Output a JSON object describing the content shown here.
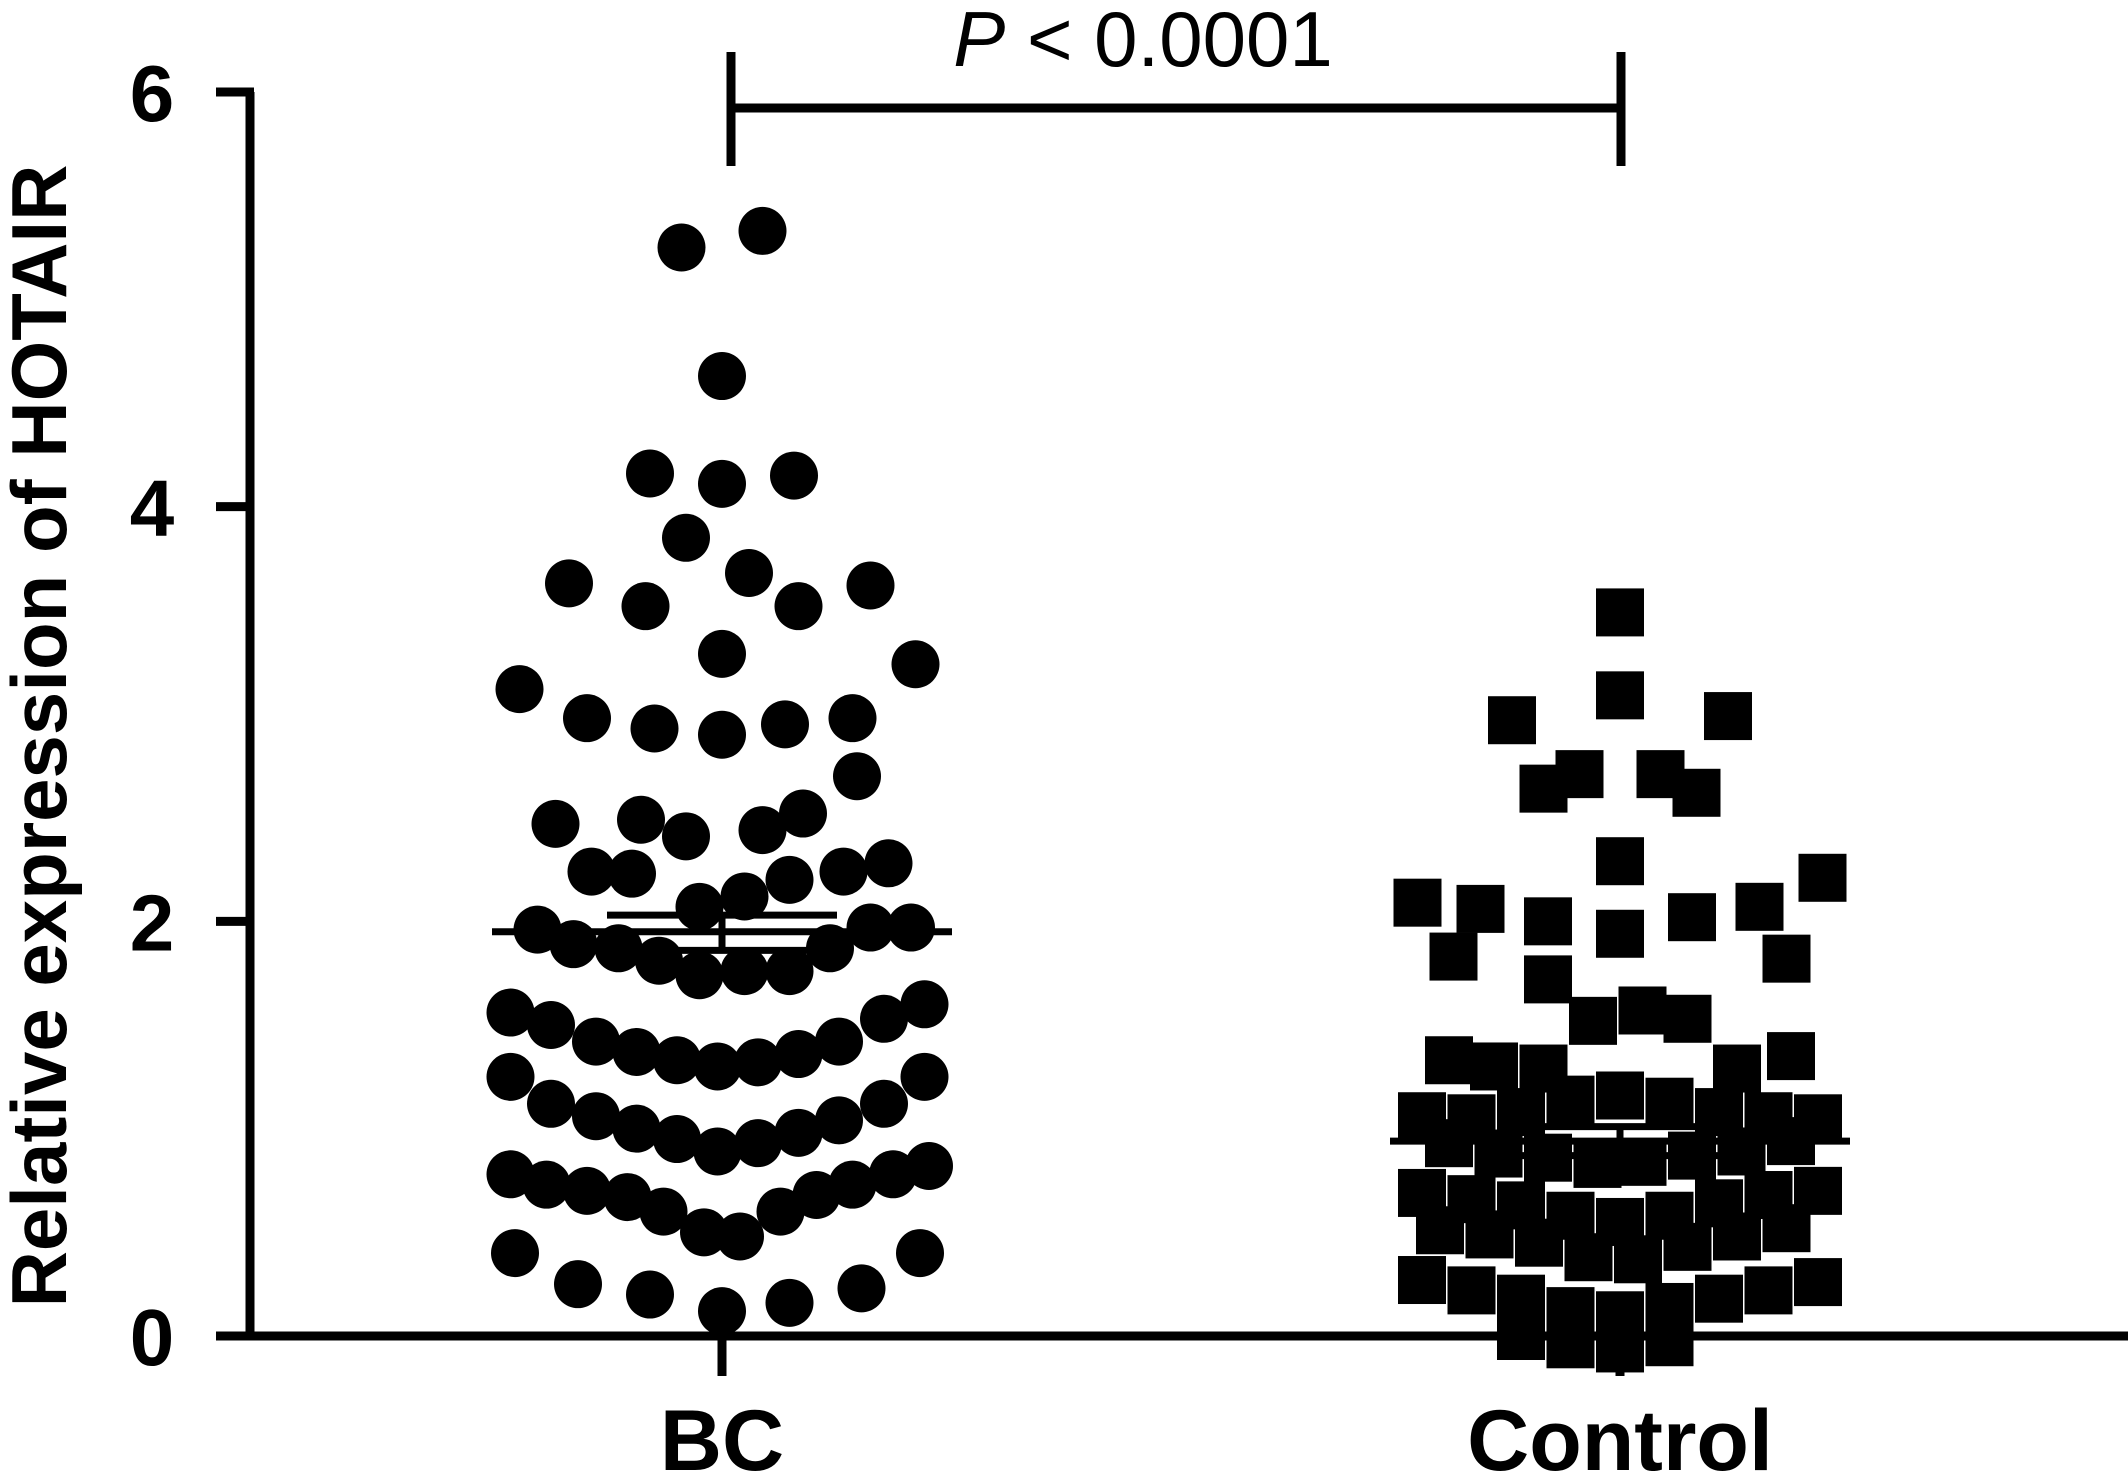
{
  "chart_data": {
    "type": "scatter",
    "ylabel": "Relative expression of HOTAIR",
    "ylim": [
      0,
      6
    ],
    "yticks": [
      "0",
      "2",
      "4",
      "6"
    ],
    "categories": [
      "BC",
      "Control"
    ],
    "grid": false,
    "annotation": {
      "p_symbol": "P",
      "p_rest": " < 0.0001"
    },
    "series": [
      {
        "category": "BC",
        "marker": "circle",
        "mean": 1.95,
        "sem_low": 1.86,
        "sem_high": 2.03,
        "points": [
          [
            -0.45,
            3.12
          ],
          [
            -0.3,
            2.98
          ],
          [
            -0.15,
            2.93
          ],
          [
            0.0,
            2.9
          ],
          [
            0.14,
            2.95
          ],
          [
            0.29,
            2.98
          ],
          [
            0.43,
            3.24
          ],
          [
            -0.34,
            3.63
          ],
          [
            -0.17,
            3.52
          ],
          [
            0.0,
            3.29
          ],
          [
            0.17,
            3.52
          ],
          [
            0.33,
            3.62
          ],
          [
            -0.16,
            4.16
          ],
          [
            0.0,
            4.11
          ],
          [
            0.16,
            4.15
          ],
          [
            -0.08,
            3.85
          ],
          [
            0.06,
            3.68
          ],
          [
            0.0,
            4.63
          ],
          [
            -0.09,
            5.25
          ],
          [
            0.09,
            5.33
          ],
          [
            -0.37,
            2.47
          ],
          [
            -0.29,
            2.24
          ],
          [
            -0.18,
            2.49
          ],
          [
            -0.08,
            2.41
          ],
          [
            0.09,
            2.44
          ],
          [
            0.18,
            2.52
          ],
          [
            0.3,
            2.7
          ],
          [
            -0.2,
            2.23
          ],
          [
            -0.05,
            2.07
          ],
          [
            0.05,
            2.12
          ],
          [
            0.15,
            2.2
          ],
          [
            0.27,
            2.24
          ],
          [
            0.37,
            2.28
          ],
          [
            -0.41,
            1.96
          ],
          [
            -0.33,
            1.89
          ],
          [
            -0.23,
            1.87
          ],
          [
            -0.14,
            1.81
          ],
          [
            -0.05,
            1.74
          ],
          [
            0.05,
            1.76
          ],
          [
            0.15,
            1.76
          ],
          [
            0.24,
            1.87
          ],
          [
            0.33,
            1.97
          ],
          [
            0.42,
            1.97
          ],
          [
            -0.47,
            1.56
          ],
          [
            -0.38,
            1.5
          ],
          [
            -0.28,
            1.42
          ],
          [
            -0.19,
            1.37
          ],
          [
            -0.1,
            1.33
          ],
          [
            -0.01,
            1.3
          ],
          [
            0.08,
            1.32
          ],
          [
            0.17,
            1.36
          ],
          [
            0.26,
            1.42
          ],
          [
            0.36,
            1.53
          ],
          [
            0.45,
            1.6
          ],
          [
            -0.47,
            1.25
          ],
          [
            -0.38,
            1.12
          ],
          [
            -0.28,
            1.06
          ],
          [
            -0.19,
            1.0
          ],
          [
            -0.1,
            0.95
          ],
          [
            -0.01,
            0.89
          ],
          [
            0.08,
            0.93
          ],
          [
            0.17,
            0.98
          ],
          [
            0.26,
            1.04
          ],
          [
            0.36,
            1.12
          ],
          [
            0.45,
            1.25
          ],
          [
            -0.47,
            0.78
          ],
          [
            -0.39,
            0.73
          ],
          [
            -0.3,
            0.7
          ],
          [
            -0.21,
            0.67
          ],
          [
            -0.13,
            0.6
          ],
          [
            -0.04,
            0.5
          ],
          [
            0.04,
            0.48
          ],
          [
            0.13,
            0.6
          ],
          [
            0.21,
            0.68
          ],
          [
            0.29,
            0.73
          ],
          [
            0.38,
            0.78
          ],
          [
            0.46,
            0.82
          ],
          [
            -0.46,
            0.4
          ],
          [
            -0.32,
            0.25
          ],
          [
            -0.16,
            0.2
          ],
          [
            0.0,
            0.12
          ],
          [
            0.15,
            0.16
          ],
          [
            0.31,
            0.23
          ],
          [
            0.44,
            0.4
          ]
        ]
      },
      {
        "category": "Control",
        "marker": "square",
        "mean": 0.94,
        "sem_low": 0.87,
        "sem_high": 1.01,
        "points": [
          [
            -0.24,
            2.97
          ],
          [
            -0.09,
            2.71
          ],
          [
            0.0,
            3.09
          ],
          [
            0.09,
            2.71
          ],
          [
            0.24,
            2.99
          ],
          [
            0.0,
            3.49
          ],
          [
            -0.17,
            2.64
          ],
          [
            0.17,
            2.62
          ],
          [
            0.0,
            2.29
          ],
          [
            -0.45,
            2.09
          ],
          [
            -0.31,
            2.06
          ],
          [
            -0.16,
            2.0
          ],
          [
            0.0,
            1.94
          ],
          [
            0.16,
            2.02
          ],
          [
            0.31,
            2.07
          ],
          [
            0.45,
            2.21
          ],
          [
            -0.37,
            1.83
          ],
          [
            -0.16,
            1.72
          ],
          [
            0.37,
            1.82
          ],
          [
            -0.38,
            1.33
          ],
          [
            -0.28,
            1.3
          ],
          [
            -0.17,
            1.29
          ],
          [
            -0.06,
            1.52
          ],
          [
            0.05,
            1.57
          ],
          [
            0.15,
            1.53
          ],
          [
            0.26,
            1.29
          ],
          [
            0.38,
            1.35
          ],
          [
            -0.44,
            1.06
          ],
          [
            -0.33,
            1.05
          ],
          [
            -0.22,
            1.08
          ],
          [
            -0.11,
            1.14
          ],
          [
            0.0,
            1.16
          ],
          [
            0.11,
            1.13
          ],
          [
            0.22,
            1.08
          ],
          [
            0.33,
            1.06
          ],
          [
            0.44,
            1.05
          ],
          [
            -0.38,
            0.93
          ],
          [
            -0.27,
            0.88
          ],
          [
            -0.16,
            0.86
          ],
          [
            -0.05,
            0.83
          ],
          [
            0.05,
            0.84
          ],
          [
            0.16,
            0.87
          ],
          [
            0.27,
            0.89
          ],
          [
            0.38,
            0.94
          ],
          [
            -0.44,
            0.69
          ],
          [
            -0.33,
            0.66
          ],
          [
            -0.22,
            0.63
          ],
          [
            -0.11,
            0.58
          ],
          [
            0.0,
            0.55
          ],
          [
            0.11,
            0.58
          ],
          [
            0.22,
            0.64
          ],
          [
            0.33,
            0.68
          ],
          [
            0.44,
            0.7
          ],
          [
            -0.4,
            0.51
          ],
          [
            -0.29,
            0.49
          ],
          [
            -0.18,
            0.45
          ],
          [
            -0.07,
            0.38
          ],
          [
            0.04,
            0.37
          ],
          [
            0.15,
            0.43
          ],
          [
            0.26,
            0.48
          ],
          [
            0.37,
            0.52
          ],
          [
            -0.44,
            0.27
          ],
          [
            -0.33,
            0.22
          ],
          [
            -0.22,
            0.18
          ],
          [
            -0.11,
            0.12
          ],
          [
            0.0,
            0.1
          ],
          [
            0.11,
            0.14
          ],
          [
            0.22,
            0.18
          ],
          [
            0.33,
            0.22
          ],
          [
            0.44,
            0.26
          ],
          [
            -0.22,
            0.0
          ],
          [
            -0.11,
            -0.04
          ],
          [
            0.0,
            -0.06
          ],
          [
            0.11,
            -0.03
          ]
        ]
      }
    ]
  }
}
